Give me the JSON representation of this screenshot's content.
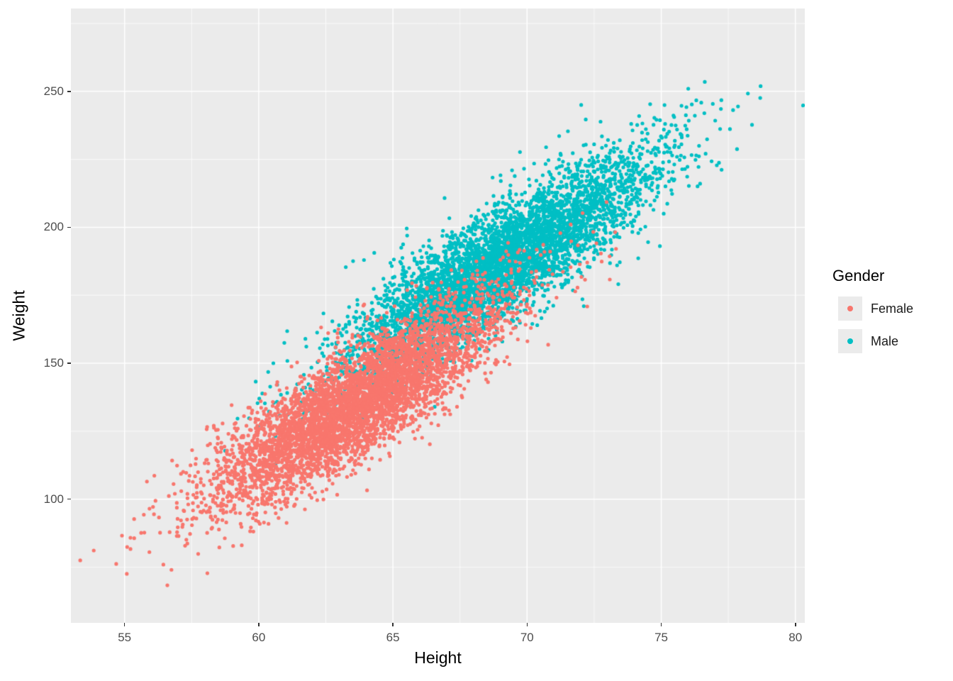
{
  "chart_data": {
    "type": "scatter",
    "title": "",
    "xlabel": "Height",
    "ylabel": "Weight",
    "xlim": [
      53.0,
      80.35
    ],
    "ylim": [
      54.5,
      280.5
    ],
    "x_ticks": [
      55,
      60,
      65,
      70,
      75,
      80
    ],
    "y_ticks": [
      100,
      150,
      200,
      250
    ],
    "grid": "on",
    "panel_background": "#EBEBEB",
    "gridline_color": "#FFFFFF",
    "tick_color": "#333333",
    "tick_label_color": "#4D4D4D",
    "point_radius": 2.6,
    "seed": 7,
    "legend": {
      "title": "Gender",
      "position": "right",
      "key_background": "#EBEBEB",
      "entries": [
        {
          "label": "Female",
          "color": "#F8766D"
        },
        {
          "label": "Male",
          "color": "#00BFC4"
        }
      ]
    },
    "series": [
      {
        "name": "Male",
        "color": "#00BFC4",
        "n": 5000,
        "x_mean": 69.03,
        "x_sd": 2.86,
        "y_mean": 187.0,
        "y_sd": 19.8,
        "corr": 0.86
      },
      {
        "name": "Female",
        "color": "#F8766D",
        "n": 5000,
        "x_mean": 63.71,
        "x_sd": 2.7,
        "y_mean": 135.9,
        "y_sd": 19.0,
        "corr": 0.85
      }
    ]
  }
}
